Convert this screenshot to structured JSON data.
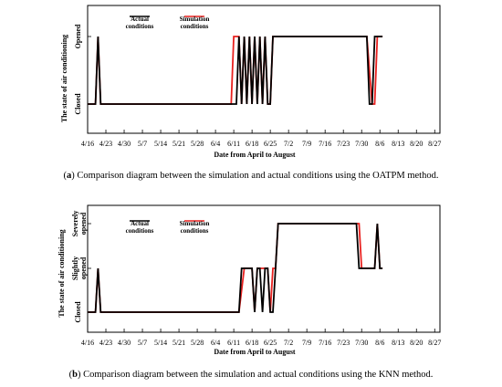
{
  "chart_data": [
    {
      "type": "line",
      "caption_tag": "a",
      "caption_text": "Comparison diagram between the simulation and actual conditions using the OATPM method.",
      "xlabel": "Date from April to August",
      "ylabel": "The state of air conditioning",
      "x_ticks": [
        "4/16",
        "4/23",
        "4/30",
        "5/7",
        "5/14",
        "5/21",
        "5/28",
        "6/4",
        "6/11",
        "6/18",
        "6/25",
        "7/2",
        "7/9",
        "7/16",
        "7/23",
        "7/30",
        "8/6",
        "8/13",
        "8/20",
        "8/27"
      ],
      "y_states": [
        "Closed",
        "Opened"
      ],
      "xlim": [
        0,
        135
      ],
      "legend": [
        {
          "label_lines": [
            "Actual",
            "conditions"
          ],
          "color": "#000000"
        },
        {
          "label_lines": [
            "Simulation",
            "conditions"
          ],
          "color": "#e8211f"
        }
      ],
      "series": [
        {
          "name": "Simulation conditions",
          "color": "#e8211f",
          "points": [
            [
              0,
              0
            ],
            [
              3,
              0
            ],
            [
              4,
              1
            ],
            [
              5,
              0
            ],
            [
              55,
              0
            ],
            [
              56,
              1
            ],
            [
              58,
              1
            ],
            [
              59,
              0
            ],
            [
              60,
              1
            ],
            [
              61,
              0
            ],
            [
              62,
              1
            ],
            [
              63,
              0
            ],
            [
              64,
              1
            ],
            [
              65,
              0
            ],
            [
              66,
              1
            ],
            [
              67,
              0
            ],
            [
              68,
              1
            ],
            [
              69,
              0
            ],
            [
              70,
              0
            ],
            [
              71,
              1
            ],
            [
              107,
              1
            ],
            [
              109,
              0
            ],
            [
              110,
              0
            ],
            [
              111,
              1
            ],
            [
              113,
              1
            ]
          ]
        },
        {
          "name": "Actual conditions",
          "color": "#000000",
          "points": [
            [
              0,
              0
            ],
            [
              3,
              0
            ],
            [
              4,
              1
            ],
            [
              5,
              0
            ],
            [
              57,
              0
            ],
            [
              58,
              1
            ],
            [
              59,
              0
            ],
            [
              60,
              1
            ],
            [
              61,
              0
            ],
            [
              62,
              1
            ],
            [
              63,
              0
            ],
            [
              64,
              1
            ],
            [
              65,
              0
            ],
            [
              66,
              1
            ],
            [
              67,
              0
            ],
            [
              68,
              1
            ],
            [
              69,
              0
            ],
            [
              70,
              0
            ],
            [
              71,
              1
            ],
            [
              107,
              1
            ],
            [
              108,
              0
            ],
            [
              109,
              0
            ],
            [
              110,
              1
            ],
            [
              113,
              1
            ]
          ]
        }
      ]
    },
    {
      "type": "line",
      "caption_tag": "b",
      "caption_text": "Comparison diagram between the simulation and actual conditions using the KNN method.",
      "xlabel": "Date from April to August",
      "ylabel": "The state of air conditioning",
      "x_ticks": [
        "4/16",
        "4/23",
        "4/30",
        "5/7",
        "5/14",
        "5/21",
        "5/28",
        "6/4",
        "6/11",
        "6/18",
        "6/25",
        "7/2",
        "7/9",
        "7/16",
        "7/23",
        "7/30",
        "8/6",
        "8/13",
        "8/20",
        "8/27"
      ],
      "y_states": [
        "Closed",
        "Slightly opened",
        "Severely opened"
      ],
      "xlim": [
        0,
        135
      ],
      "legend": [
        {
          "label_lines": [
            "Actual",
            "conditions"
          ],
          "color": "#000000"
        },
        {
          "label_lines": [
            "Simulation",
            "conditions"
          ],
          "color": "#e8211f"
        }
      ],
      "series": [
        {
          "name": "Simulation conditions",
          "color": "#e8211f",
          "points": [
            [
              0,
              0
            ],
            [
              3,
              0
            ],
            [
              4,
              1
            ],
            [
              5,
              0
            ],
            [
              58,
              0
            ],
            [
              60,
              1
            ],
            [
              63,
              1
            ],
            [
              64,
              0
            ],
            [
              65,
              1
            ],
            [
              69,
              1
            ],
            [
              70,
              0
            ],
            [
              71,
              1
            ],
            [
              72,
              1
            ],
            [
              73,
              2
            ],
            [
              104,
              2
            ],
            [
              105,
              1
            ],
            [
              110,
              1
            ],
            [
              111,
              2
            ],
            [
              112,
              1
            ],
            [
              113,
              1
            ]
          ]
        },
        {
          "name": "Actual conditions",
          "color": "#000000",
          "points": [
            [
              0,
              0
            ],
            [
              3,
              0
            ],
            [
              4,
              1
            ],
            [
              5,
              0
            ],
            [
              58,
              0
            ],
            [
              59,
              1
            ],
            [
              63,
              1
            ],
            [
              64,
              0
            ],
            [
              65,
              1
            ],
            [
              66,
              1
            ],
            [
              67,
              0
            ],
            [
              68,
              1
            ],
            [
              69,
              1
            ],
            [
              70,
              0
            ],
            [
              71,
              0
            ],
            [
              72,
              1
            ],
            [
              73,
              2
            ],
            [
              103,
              2
            ],
            [
              104,
              1
            ],
            [
              110,
              1
            ],
            [
              111,
              2
            ],
            [
              112,
              1
            ],
            [
              113,
              1
            ]
          ]
        }
      ]
    }
  ]
}
